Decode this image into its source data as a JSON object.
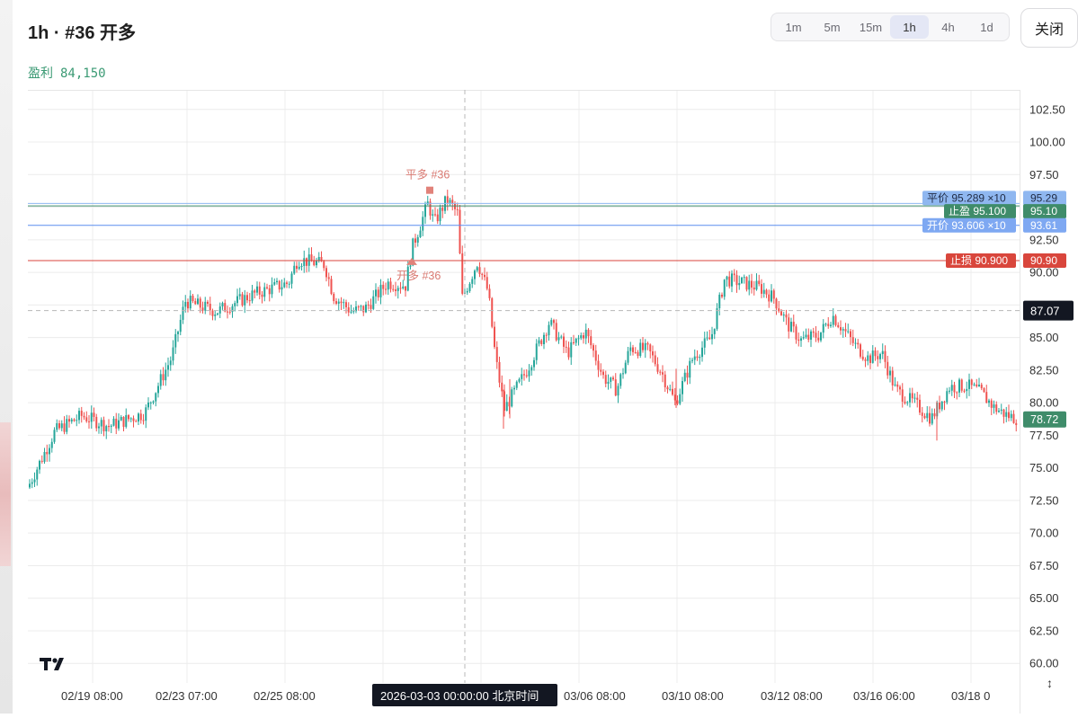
{
  "header": {
    "title": "1h · #36 开多",
    "profit_label": "盈利",
    "profit_value": "84,150"
  },
  "timeframes": [
    {
      "label": "1m",
      "active": false
    },
    {
      "label": "5m",
      "active": false
    },
    {
      "label": "15m",
      "active": false
    },
    {
      "label": "1h",
      "active": true
    },
    {
      "label": "4h",
      "active": false
    },
    {
      "label": "1d",
      "active": false
    }
  ],
  "close_label": "关闭",
  "colors": {
    "up": "#26a69a",
    "down": "#ef5350",
    "grid": "#ececec",
    "stop_loss": "#d9463c",
    "take_profit": "#3f8c6a",
    "entry": "#5b8def",
    "close_line": "#8fb7f0"
  },
  "chart_data": {
    "type": "candlestick",
    "ylim": [
      58.5,
      104.0
    ],
    "y_ticks": [
      "60.00",
      "62.50",
      "65.00",
      "67.50",
      "70.00",
      "72.50",
      "75.00",
      "77.50",
      "80.00",
      "82.50",
      "85.00",
      "87.50",
      "90.00",
      "92.50",
      "95.00",
      "97.50",
      "100.00",
      "102.50"
    ],
    "x_ticks": [
      "02/19 08:00",
      "02/23 07:00",
      "02/25 08:00",
      "03/06 08:00",
      "03/10 08:00",
      "03/12 08:00",
      "03/16 06:00",
      "03/18 0"
    ],
    "crosshair": {
      "time_label": "2026-03-03 00:00:00 北京时间",
      "price": 87.07,
      "price_label": "87.07"
    },
    "last_price": {
      "value": 78.72,
      "label": "78.72"
    },
    "price_lines": [
      {
        "name": "close",
        "text": "平价 95.289 ×10",
        "value": 95.289,
        "axis_label": "95.29"
      },
      {
        "name": "take-profit",
        "text": "止盈 95.100",
        "value": 95.1,
        "axis_label": "95.10"
      },
      {
        "name": "entry",
        "text": "开价 93.606 ×10",
        "value": 93.606,
        "axis_label": "93.61"
      },
      {
        "name": "stop-loss",
        "text": "止损 90.900",
        "value": 90.9,
        "axis_label": "90.90"
      }
    ],
    "markers": [
      {
        "name": "exit",
        "text": "平多 #36",
        "price": 96.3
      },
      {
        "name": "entry",
        "text": "开多 #36",
        "price": 90.7
      }
    ],
    "trend": [
      [
        0,
        73.5
      ],
      [
        30,
        77.8
      ],
      [
        60,
        79.0
      ],
      [
        90,
        78.2
      ],
      [
        130,
        79.2
      ],
      [
        160,
        83.5
      ],
      [
        175,
        87.8
      ],
      [
        210,
        87.0
      ],
      [
        250,
        88.3
      ],
      [
        290,
        89.2
      ],
      [
        300,
        91.0
      ],
      [
        330,
        90.6
      ],
      [
        340,
        88.2
      ],
      [
        360,
        87.0
      ],
      [
        375,
        87.2
      ],
      [
        400,
        89.2
      ],
      [
        420,
        89.0
      ],
      [
        428,
        92.0
      ],
      [
        445,
        95.3
      ],
      [
        452,
        93.8
      ],
      [
        466,
        95.6
      ],
      [
        478,
        94.5
      ],
      [
        483,
        88.0
      ],
      [
        500,
        90.8
      ],
      [
        512,
        88.5
      ],
      [
        520,
        83.5
      ],
      [
        530,
        79.5
      ],
      [
        555,
        82.5
      ],
      [
        580,
        86.2
      ],
      [
        600,
        83.8
      ],
      [
        620,
        85.5
      ],
      [
        640,
        82.0
      ],
      [
        655,
        81.0
      ],
      [
        670,
        84.2
      ],
      [
        690,
        84.0
      ],
      [
        705,
        82.3
      ],
      [
        720,
        80.0
      ],
      [
        740,
        83.5
      ],
      [
        760,
        85.0
      ],
      [
        775,
        89.5
      ],
      [
        795,
        89.2
      ],
      [
        815,
        88.8
      ],
      [
        830,
        88.0
      ],
      [
        845,
        86.0
      ],
      [
        860,
        84.8
      ],
      [
        880,
        85.2
      ],
      [
        895,
        86.7
      ],
      [
        905,
        85.8
      ],
      [
        920,
        84.4
      ],
      [
        935,
        83.4
      ],
      [
        950,
        83.8
      ],
      [
        965,
        81.0
      ],
      [
        985,
        80.0
      ],
      [
        1005,
        78.8
      ],
      [
        1025,
        81.2
      ],
      [
        1045,
        81.3
      ],
      [
        1060,
        80.8
      ],
      [
        1075,
        79.6
      ],
      [
        1090,
        79.0
      ],
      [
        1103,
        78.72
      ]
    ]
  }
}
